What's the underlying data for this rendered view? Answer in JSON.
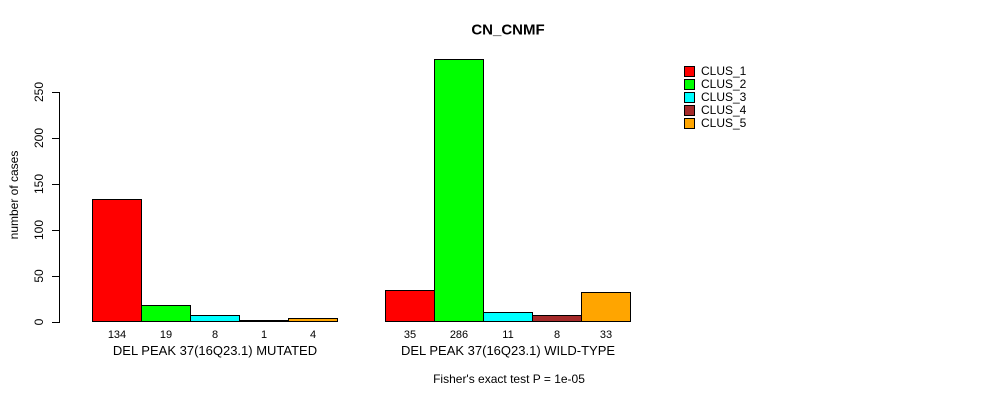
{
  "chart_data": {
    "type": "bar",
    "title": "CN_CNMF",
    "ylabel": "number of cases",
    "annotation": "Fisher's exact test P = 1e-05",
    "yticks": [
      0,
      50,
      100,
      150,
      200,
      250
    ],
    "ylim": [
      0,
      286
    ],
    "grid": false,
    "legend_position": "right",
    "categories": [
      "DEL PEAK 37(16Q23.1) MUTATED",
      "DEL PEAK 37(16Q23.1) WILD-TYPE"
    ],
    "groups": [
      {
        "label": "DEL PEAK 37(16Q23.1) MUTATED",
        "values": [
          134,
          19,
          8,
          1,
          4
        ]
      },
      {
        "label": "DEL PEAK 37(16Q23.1) WILD-TYPE",
        "values": [
          35,
          286,
          11,
          8,
          33
        ]
      }
    ],
    "series": [
      {
        "name": "CLUS_1",
        "color": "#FF0000"
      },
      {
        "name": "CLUS_2",
        "color": "#00FF00"
      },
      {
        "name": "CLUS_3",
        "color": "#00FFFF"
      },
      {
        "name": "CLUS_4",
        "color": "#A52A2A"
      },
      {
        "name": "CLUS_5",
        "color": "#FFA500"
      }
    ]
  }
}
